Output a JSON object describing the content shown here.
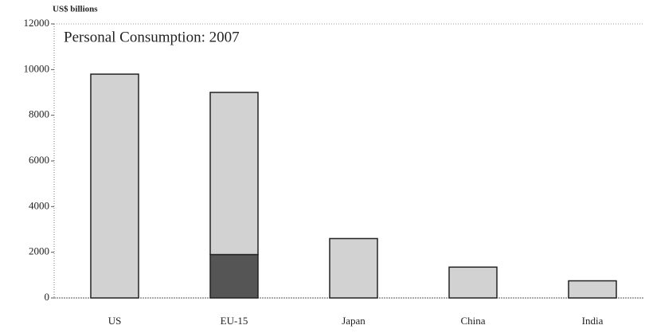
{
  "chart_data": {
    "type": "stacked_bar",
    "title": "Personal Consumption: 2007",
    "y_label": "US$ billions",
    "categories": [
      "US",
      "EU-15",
      "Japan",
      "China",
      "India"
    ],
    "series": [
      {
        "color": "#555555",
        "values": [
          null,
          1900,
          null,
          null,
          null
        ]
      },
      {
        "color": "#d2d2d2",
        "values": [
          9800,
          7100,
          2600,
          1350,
          750
        ]
      }
    ],
    "ylim": [
      0,
      12000
    ],
    "yticks": [
      0,
      2000,
      4000,
      6000,
      8000,
      10000,
      12000
    ]
  }
}
